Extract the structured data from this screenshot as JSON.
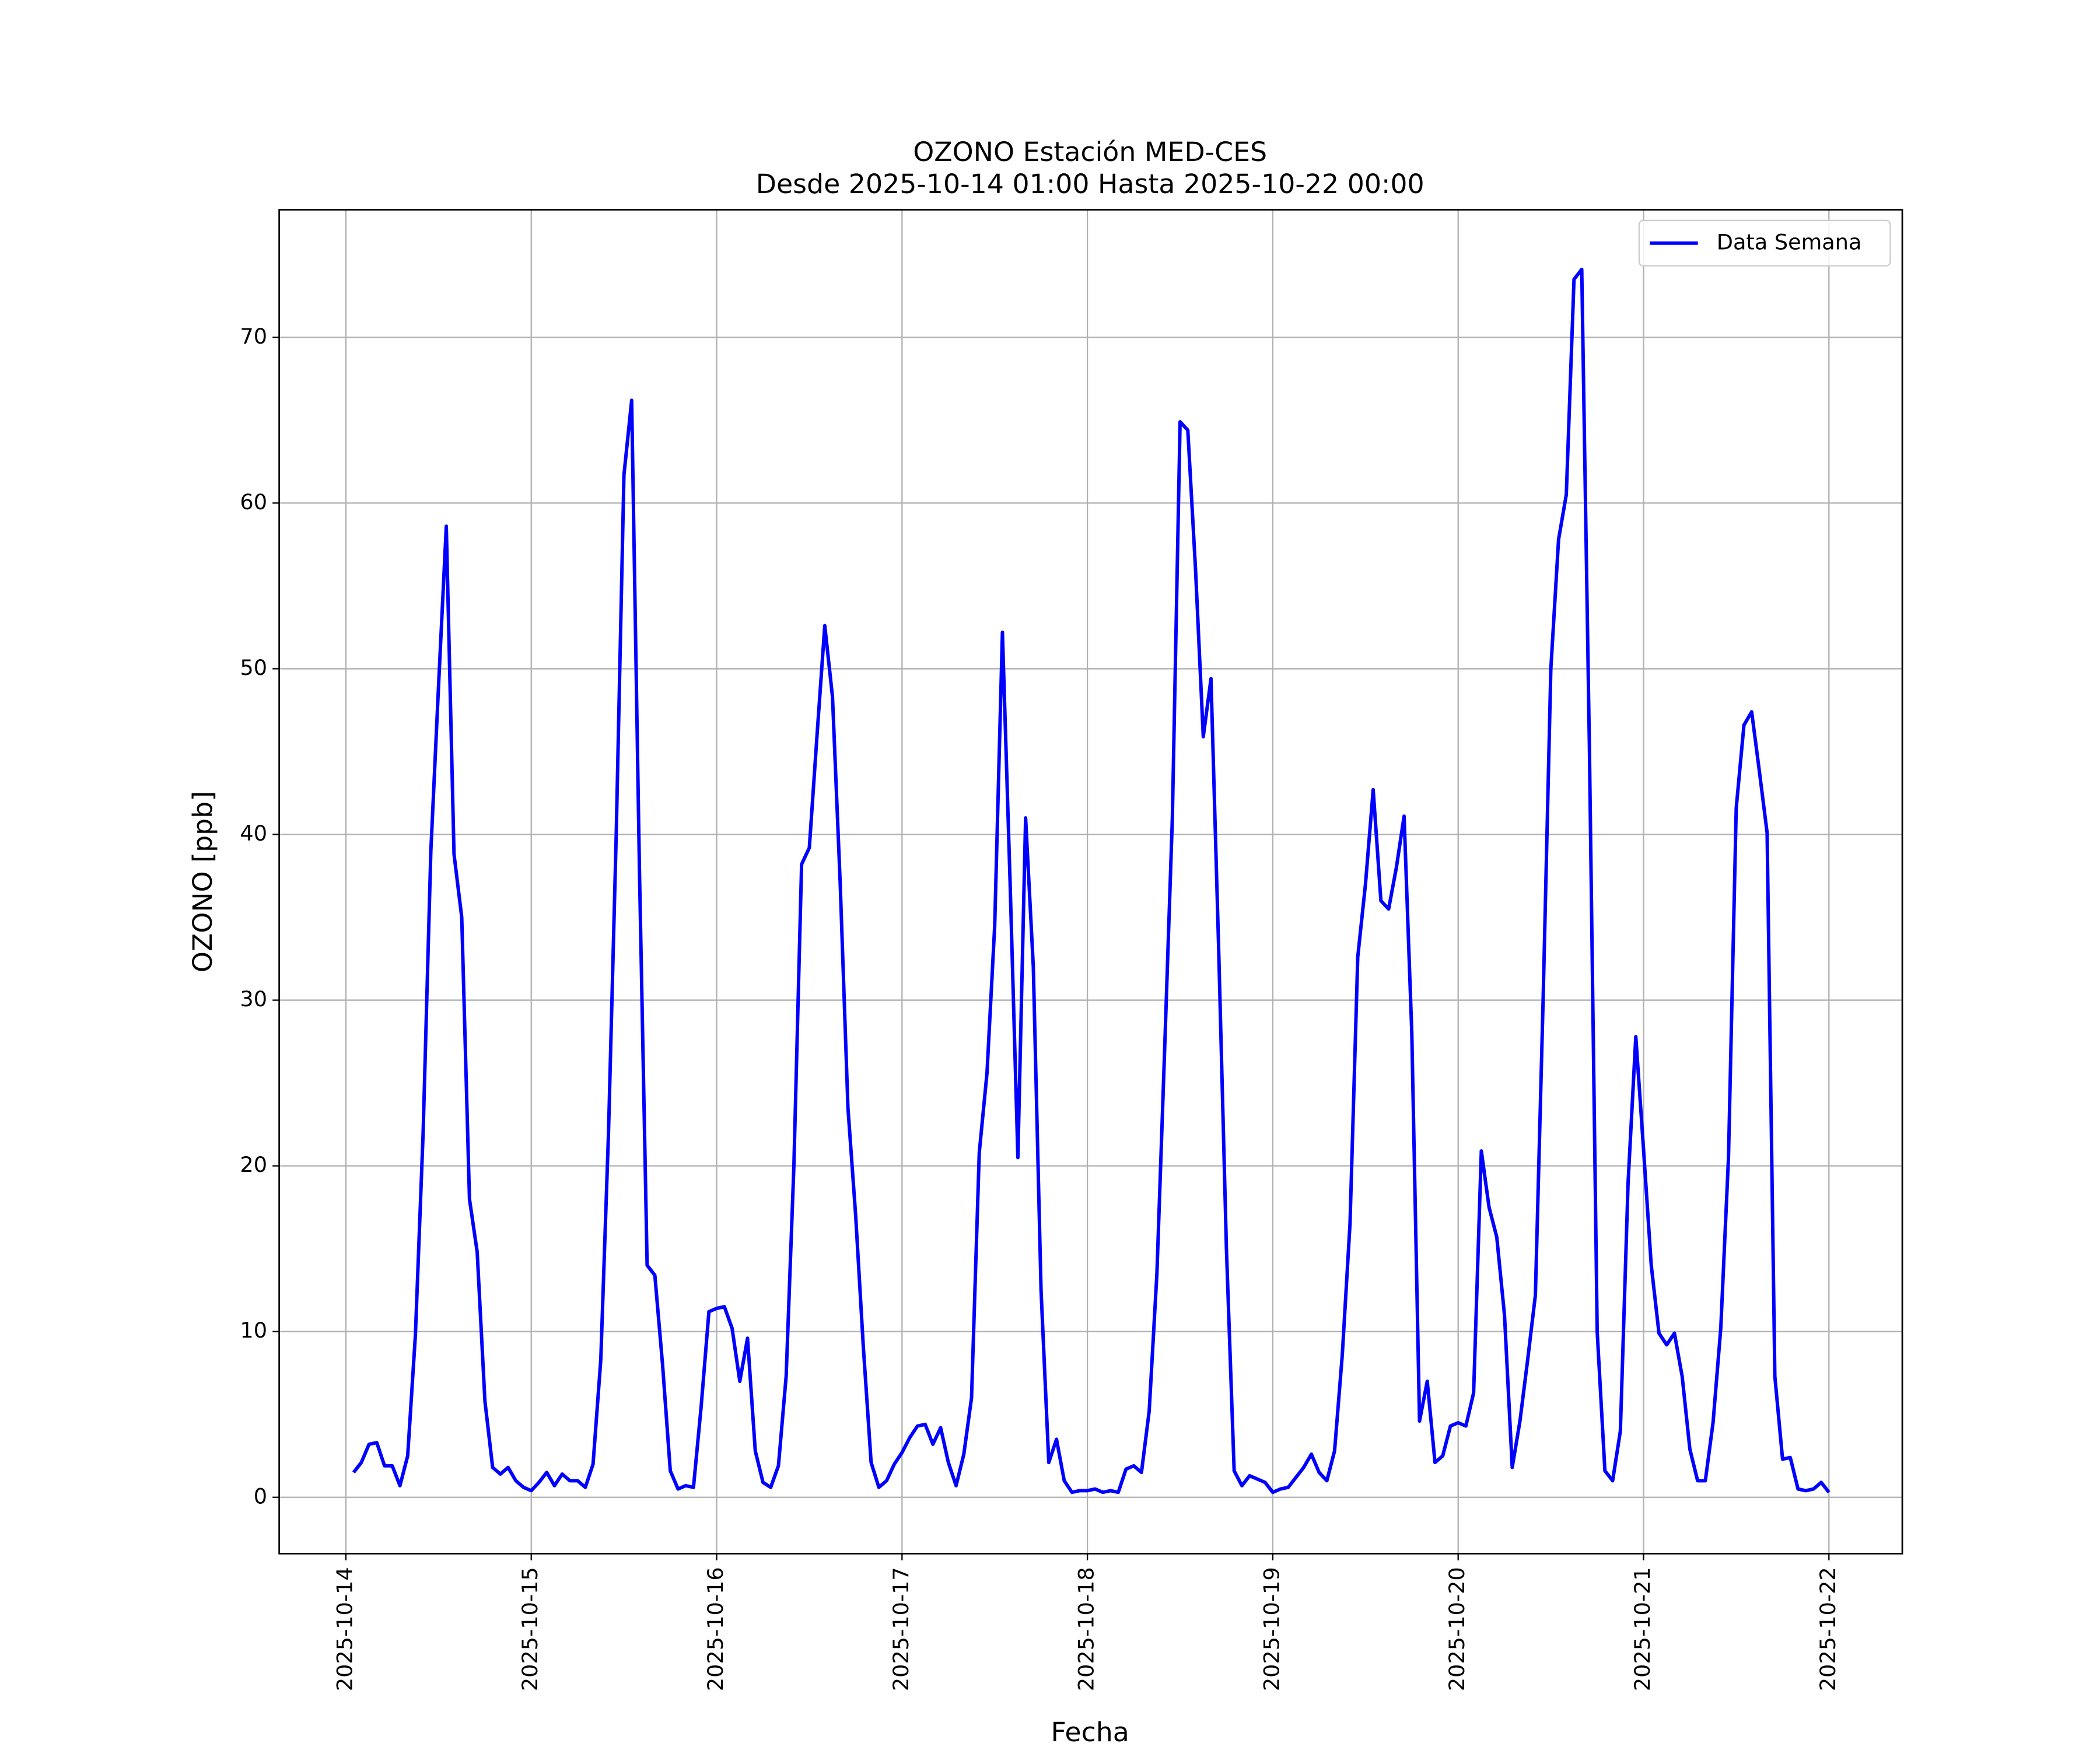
{
  "chart_data": {
    "type": "line",
    "title": "OZONO Estación MED-CES",
    "subtitle": "Desde 2025-10-14 01:00 Hasta 2025-10-22 00:00",
    "xlabel": "Fecha",
    "ylabel": "OZONO [ppb]",
    "x": [
      "2025-10-14 01:00",
      "2025-10-14 02:00",
      "2025-10-14 03:00",
      "2025-10-14 04:00",
      "2025-10-14 05:00",
      "2025-10-14 06:00",
      "2025-10-14 07:00",
      "2025-10-14 08:00",
      "2025-10-14 09:00",
      "2025-10-14 10:00",
      "2025-10-14 11:00",
      "2025-10-14 12:00",
      "2025-10-14 13:00",
      "2025-10-14 14:00",
      "2025-10-14 15:00",
      "2025-10-14 16:00",
      "2025-10-14 17:00",
      "2025-10-14 18:00",
      "2025-10-14 19:00",
      "2025-10-14 20:00",
      "2025-10-14 21:00",
      "2025-10-14 22:00",
      "2025-10-14 23:00",
      "2025-10-15 00:00",
      "2025-10-15 01:00",
      "2025-10-15 02:00",
      "2025-10-15 03:00",
      "2025-10-15 04:00",
      "2025-10-15 05:00",
      "2025-10-15 06:00",
      "2025-10-15 07:00",
      "2025-10-15 08:00",
      "2025-10-15 09:00",
      "2025-10-15 10:00",
      "2025-10-15 11:00",
      "2025-10-15 12:00",
      "2025-10-15 13:00",
      "2025-10-15 14:00",
      "2025-10-15 15:00",
      "2025-10-15 16:00",
      "2025-10-15 17:00",
      "2025-10-15 18:00",
      "2025-10-15 19:00",
      "2025-10-15 20:00",
      "2025-10-15 21:00",
      "2025-10-15 22:00",
      "2025-10-15 23:00",
      "2025-10-16 00:00",
      "2025-10-16 01:00",
      "2025-10-16 02:00",
      "2025-10-16 03:00",
      "2025-10-16 04:00",
      "2025-10-16 05:00",
      "2025-10-16 06:00",
      "2025-10-16 07:00",
      "2025-10-16 08:00",
      "2025-10-16 09:00",
      "2025-10-16 10:00",
      "2025-10-16 11:00",
      "2025-10-16 12:00",
      "2025-10-16 13:00",
      "2025-10-16 14:00",
      "2025-10-16 15:00",
      "2025-10-16 16:00",
      "2025-10-16 17:00",
      "2025-10-16 18:00",
      "2025-10-16 19:00",
      "2025-10-16 20:00",
      "2025-10-16 21:00",
      "2025-10-16 22:00",
      "2025-10-16 23:00",
      "2025-10-17 00:00",
      "2025-10-17 01:00",
      "2025-10-17 02:00",
      "2025-10-17 03:00",
      "2025-10-17 04:00",
      "2025-10-17 05:00",
      "2025-10-17 06:00",
      "2025-10-17 07:00",
      "2025-10-17 08:00",
      "2025-10-17 09:00",
      "2025-10-17 10:00",
      "2025-10-17 11:00",
      "2025-10-17 12:00",
      "2025-10-17 13:00",
      "2025-10-17 14:00",
      "2025-10-17 15:00",
      "2025-10-17 16:00",
      "2025-10-17 17:00",
      "2025-10-17 18:00",
      "2025-10-17 19:00",
      "2025-10-17 20:00",
      "2025-10-17 21:00",
      "2025-10-17 22:00",
      "2025-10-17 23:00",
      "2025-10-18 00:00",
      "2025-10-18 01:00",
      "2025-10-18 02:00",
      "2025-10-18 03:00",
      "2025-10-18 04:00",
      "2025-10-18 05:00",
      "2025-10-18 06:00",
      "2025-10-18 07:00",
      "2025-10-18 08:00",
      "2025-10-18 09:00",
      "2025-10-18 10:00",
      "2025-10-18 11:00",
      "2025-10-18 12:00",
      "2025-10-18 13:00",
      "2025-10-18 14:00",
      "2025-10-18 15:00",
      "2025-10-18 16:00",
      "2025-10-18 17:00",
      "2025-10-18 18:00",
      "2025-10-18 19:00",
      "2025-10-18 20:00",
      "2025-10-18 21:00",
      "2025-10-18 22:00",
      "2025-10-18 23:00",
      "2025-10-19 00:00",
      "2025-10-19 01:00",
      "2025-10-19 02:00",
      "2025-10-19 03:00",
      "2025-10-19 04:00",
      "2025-10-19 05:00",
      "2025-10-19 06:00",
      "2025-10-19 07:00",
      "2025-10-19 08:00",
      "2025-10-19 09:00",
      "2025-10-19 10:00",
      "2025-10-19 11:00",
      "2025-10-19 12:00",
      "2025-10-19 13:00",
      "2025-10-19 14:00",
      "2025-10-19 15:00",
      "2025-10-19 16:00",
      "2025-10-19 17:00",
      "2025-10-19 18:00",
      "2025-10-19 19:00",
      "2025-10-19 20:00",
      "2025-10-19 21:00",
      "2025-10-19 22:00",
      "2025-10-19 23:00",
      "2025-10-20 00:00",
      "2025-10-20 01:00",
      "2025-10-20 02:00",
      "2025-10-20 03:00",
      "2025-10-20 04:00",
      "2025-10-20 05:00",
      "2025-10-20 06:00",
      "2025-10-20 07:00",
      "2025-10-20 08:00",
      "2025-10-20 09:00",
      "2025-10-20 10:00",
      "2025-10-20 11:00",
      "2025-10-20 12:00",
      "2025-10-20 13:00",
      "2025-10-20 14:00",
      "2025-10-20 15:00",
      "2025-10-20 16:00",
      "2025-10-20 17:00",
      "2025-10-20 18:00",
      "2025-10-20 19:00",
      "2025-10-20 20:00",
      "2025-10-20 21:00",
      "2025-10-20 22:00",
      "2025-10-20 23:00",
      "2025-10-21 00:00",
      "2025-10-21 01:00",
      "2025-10-21 02:00",
      "2025-10-21 03:00",
      "2025-10-21 04:00",
      "2025-10-21 05:00",
      "2025-10-21 06:00",
      "2025-10-21 07:00",
      "2025-10-21 08:00",
      "2025-10-21 09:00",
      "2025-10-21 10:00",
      "2025-10-21 11:00",
      "2025-10-21 12:00",
      "2025-10-21 13:00",
      "2025-10-21 14:00",
      "2025-10-21 15:00",
      "2025-10-21 16:00",
      "2025-10-21 17:00",
      "2025-10-21 18:00",
      "2025-10-21 19:00",
      "2025-10-21 20:00",
      "2025-10-21 21:00",
      "2025-10-21 22:00",
      "2025-10-21 23:00",
      "2025-10-22 00:00"
    ],
    "series": [
      {
        "name": "Data Semana",
        "color": "#0000ff",
        "values": [
          1.5,
          2.1,
          3.2,
          3.3,
          1.9,
          1.9,
          0.7,
          2.5,
          9.8,
          22,
          39,
          49,
          58.6,
          38.8,
          35,
          18,
          14.8,
          5.8,
          1.8,
          1.4,
          1.8,
          1.0,
          0.6,
          0.4,
          0.9,
          1.5,
          0.7,
          1.4,
          1.0,
          1.0,
          0.6,
          2.0,
          8.3,
          22,
          40,
          61.7,
          66.2,
          38,
          14,
          13.4,
          8,
          1.6,
          0.5,
          0.7,
          0.6,
          5.5,
          11.2,
          11.4,
          11.5,
          10.2,
          7.0,
          9.6,
          2.8,
          0.9,
          0.6,
          1.9,
          7.3,
          20,
          38.2,
          39.2,
          46,
          52.6,
          48.3,
          37,
          23.5,
          17,
          9,
          2.1,
          0.6,
          1.0,
          2.0,
          2.7,
          3.6,
          4.3,
          4.4,
          3.2,
          4.2,
          2.1,
          0.7,
          2.6,
          6.0,
          20.8,
          25.6,
          34.5,
          52.2,
          37,
          20.5,
          41,
          32,
          12.5,
          2.1,
          3.5,
          1.0,
          0.3,
          0.4,
          0.4,
          0.5,
          0.3,
          0.4,
          0.3,
          1.7,
          1.9,
          1.5,
          5.2,
          13.5,
          27,
          41,
          64.9,
          64.4,
          56,
          45.9,
          49.4,
          33,
          15,
          1.6,
          0.7,
          1.3,
          1.1,
          0.9,
          0.3,
          0.5,
          0.6,
          1.2,
          1.8,
          2.6,
          1.5,
          1.0,
          2.8,
          8.6,
          16.5,
          32.6,
          37,
          42.7,
          36,
          35.5,
          38,
          41.1,
          28,
          4.6,
          7.0,
          2.1,
          2.5,
          4.3,
          4.5,
          4.3,
          6.3,
          20.9,
          17.5,
          15.7,
          11,
          1.8,
          4.6,
          8.3,
          12.2,
          30,
          50,
          57.8,
          60.5,
          73.5,
          74.1,
          45,
          10,
          1.6,
          1.0,
          4.0,
          19,
          27.8,
          21,
          14,
          9.9,
          9.2,
          9.9,
          7.3,
          2.9,
          1.0,
          1.0,
          4.5,
          10.2,
          20.5,
          41.6,
          46.6,
          47.4,
          43.8,
          40.1,
          7.3,
          2.3,
          2.4,
          0.5,
          0.4,
          0.5,
          0.9,
          0.3
        ]
      }
    ],
    "xlim": [
      "2025-10-13 15:22",
      "2025-10-22 09:30"
    ],
    "xticks": [
      "2025-10-14",
      "2025-10-15",
      "2025-10-16",
      "2025-10-17",
      "2025-10-18",
      "2025-10-19",
      "2025-10-20",
      "2025-10-21",
      "2025-10-22"
    ],
    "ylim": [
      -3.4,
      77.7
    ],
    "yticks": [
      0,
      10,
      20,
      30,
      40,
      50,
      60,
      70
    ],
    "grid": true,
    "legend": "upper right"
  }
}
